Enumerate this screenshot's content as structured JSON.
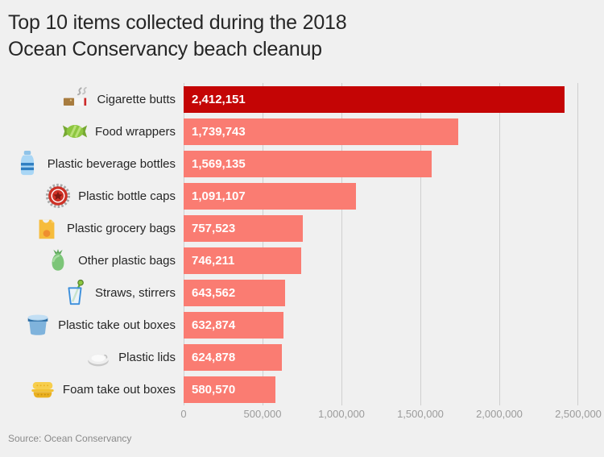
{
  "title": {
    "line1": "Top 10 items collected during the 2018",
    "line2": "Ocean Conservancy beach cleanup"
  },
  "source": "Source: Ocean Conservancy",
  "colors": {
    "background": "#F0F0F0",
    "title_text": "#262626",
    "label_text": "#262626",
    "bar_highlight": "#C40505",
    "bar_default": "#FA7C72",
    "value_text": "#FFFFFF",
    "gridline": "#CFCFCF",
    "axis_text": "#9B9B9B",
    "source_text": "#8A8A8A"
  },
  "chart_data": {
    "type": "bar",
    "orientation": "horizontal",
    "title": "Top 10 items collected during the 2018 Ocean Conservancy beach cleanup",
    "xlabel": "",
    "ylabel": "",
    "xlim": [
      0,
      2500000
    ],
    "grid": "vertical",
    "x_ticks": [
      "0",
      "500,000",
      "1,000,000",
      "1,500,000",
      "2,000,000",
      "2,500,000"
    ],
    "x_tick_values": [
      0,
      500000,
      1000000,
      1500000,
      2000000,
      2500000
    ],
    "rows": [
      {
        "label": "Cigarette butts",
        "value": 2412151,
        "value_label": "2,412,151",
        "icon": "cigarette-icon",
        "highlight": true
      },
      {
        "label": "Food wrappers",
        "value": 1739743,
        "value_label": "1,739,743",
        "icon": "candy-wrapper-icon",
        "highlight": false
      },
      {
        "label": "Plastic beverage bottles",
        "value": 1569135,
        "value_label": "1,569,135",
        "icon": "water-bottle-icon",
        "highlight": false
      },
      {
        "label": "Plastic bottle caps",
        "value": 1091107,
        "value_label": "1,091,107",
        "icon": "bottle-cap-icon",
        "highlight": false
      },
      {
        "label": "Plastic grocery bags",
        "value": 757523,
        "value_label": "757,523",
        "icon": "grocery-bag-icon",
        "highlight": false
      },
      {
        "label": "Other plastic bags",
        "value": 746211,
        "value_label": "746,211",
        "icon": "trash-bag-icon",
        "highlight": false
      },
      {
        "label": "Straws, stirrers",
        "value": 643562,
        "value_label": "643,562",
        "icon": "straw-cup-icon",
        "highlight": false
      },
      {
        "label": "Plastic take out boxes",
        "value": 632874,
        "value_label": "632,874",
        "icon": "takeout-tub-icon",
        "highlight": false
      },
      {
        "label": "Plastic lids",
        "value": 624878,
        "value_label": "624,878",
        "icon": "plastic-lid-icon",
        "highlight": false
      },
      {
        "label": "Foam take out boxes",
        "value": 580570,
        "value_label": "580,570",
        "icon": "foam-box-icon",
        "highlight": false
      }
    ]
  }
}
